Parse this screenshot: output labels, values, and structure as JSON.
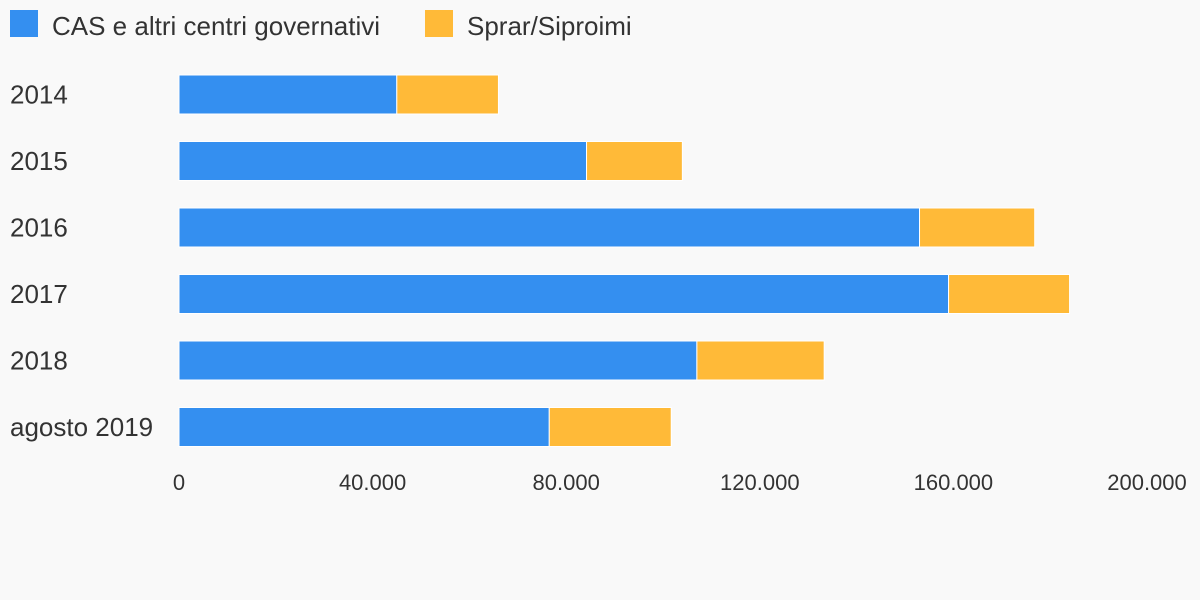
{
  "chart_data": {
    "type": "bar",
    "orientation": "horizontal",
    "stacked": true,
    "categories": [
      "2014",
      "2015",
      "2016",
      "2017",
      "2018",
      "agosto 2019"
    ],
    "series": [
      {
        "name": "CAS e altri centri governativi",
        "color": "#348ff0",
        "values": [
          45000,
          84200,
          153000,
          159000,
          107000,
          76500
        ]
      },
      {
        "name": "Sprar/Siproimi",
        "color": "#ffba38",
        "values": [
          21000,
          19800,
          23800,
          25000,
          26300,
          25200
        ]
      }
    ],
    "xlim": [
      0,
      200000
    ],
    "x_ticks": [
      0,
      40000,
      80000,
      120000,
      160000,
      200000
    ],
    "x_tick_labels": [
      "0",
      "40.000",
      "80.000",
      "120.000",
      "160.000",
      "200.000"
    ],
    "legend_position": "top-left",
    "grid": false,
    "title": "",
    "xlabel": "",
    "ylabel": ""
  }
}
